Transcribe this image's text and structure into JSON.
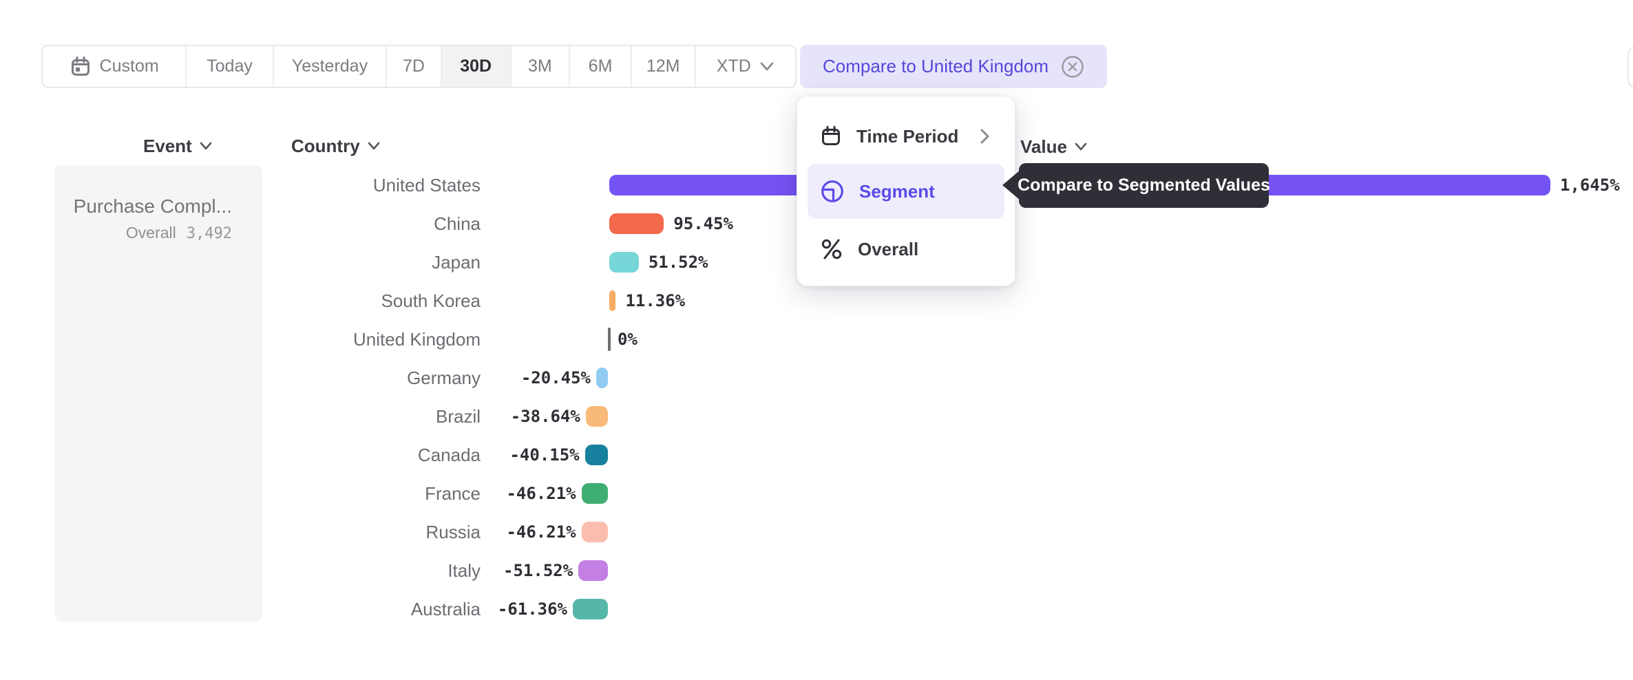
{
  "toolbar": {
    "buttons": [
      {
        "id": "custom",
        "label": "Custom",
        "icon": "calendar"
      },
      {
        "id": "today",
        "label": "Today"
      },
      {
        "id": "yesterday",
        "label": "Yesterday"
      },
      {
        "id": "7d",
        "label": "7D"
      },
      {
        "id": "30d",
        "label": "30D",
        "selected": true
      },
      {
        "id": "3m",
        "label": "3M"
      },
      {
        "id": "6m",
        "label": "6M"
      },
      {
        "id": "12m",
        "label": "12M"
      },
      {
        "id": "xtd",
        "label": "XTD",
        "chevron": true
      }
    ],
    "compare_chip": {
      "label": "Compare to United Kingdom"
    }
  },
  "columns": {
    "event": "Event",
    "country": "Country",
    "value": "Value"
  },
  "event_panel": {
    "event_name": "Purchase Compl...",
    "segment_label": "Overall",
    "count": "3,492"
  },
  "menu": {
    "items": [
      {
        "label": "Time Period",
        "icon": "calendar",
        "has_submenu": true
      },
      {
        "label": "Segment",
        "icon": "segment",
        "selected": true
      },
      {
        "label": "Overall",
        "icon": "percent"
      }
    ]
  },
  "tooltip": {
    "text": "Compare to Segmented Values"
  },
  "chart_data": {
    "type": "bar",
    "orientation": "horizontal",
    "unit": "percent relative to United Kingdom baseline",
    "title": "Purchase Completed — compared to United Kingdom, by Country (30D)",
    "categories": [
      "United States",
      "China",
      "Japan",
      "South Korea",
      "United Kingdom",
      "Germany",
      "Brazil",
      "Canada",
      "France",
      "Russia",
      "Italy",
      "Australia"
    ],
    "values": [
      1645,
      95.45,
      51.52,
      11.36,
      0,
      -20.45,
      -38.64,
      -40.15,
      -46.21,
      -46.21,
      -51.52,
      -61.36
    ],
    "labels": [
      "1,645%",
      "95.45%",
      "51.52%",
      "11.36%",
      "0%",
      "-20.45%",
      "-38.64%",
      "-40.15%",
      "-46.21%",
      "-46.21%",
      "-51.52%",
      "-61.36%"
    ],
    "colors": [
      "#7552F4",
      "#F3694C",
      "#76D6D8",
      "#F8AC63",
      "#6E6E73",
      "#90CBF1",
      "#F9BA79",
      "#17809F",
      "#3EAE72",
      "#FBBDAE",
      "#C47FE4",
      "#55B7A9"
    ],
    "dotted": [
      false,
      false,
      false,
      false,
      false,
      true,
      true,
      false,
      false,
      false,
      false,
      false
    ],
    "xlim": [
      -61.36,
      1645
    ],
    "grid": false,
    "legend": false
  },
  "colors": {
    "accent": "#5348D9",
    "chip_bg": "#E6E4FB",
    "selected_item_bg": "#EFEDFC",
    "tooltip_bg": "#2F2F37",
    "panel_bg": "#F5F5F6",
    "toolbar_border": "#E8E8EB",
    "value_text": "#2F2F36",
    "label_text": "#6C6C72"
  }
}
